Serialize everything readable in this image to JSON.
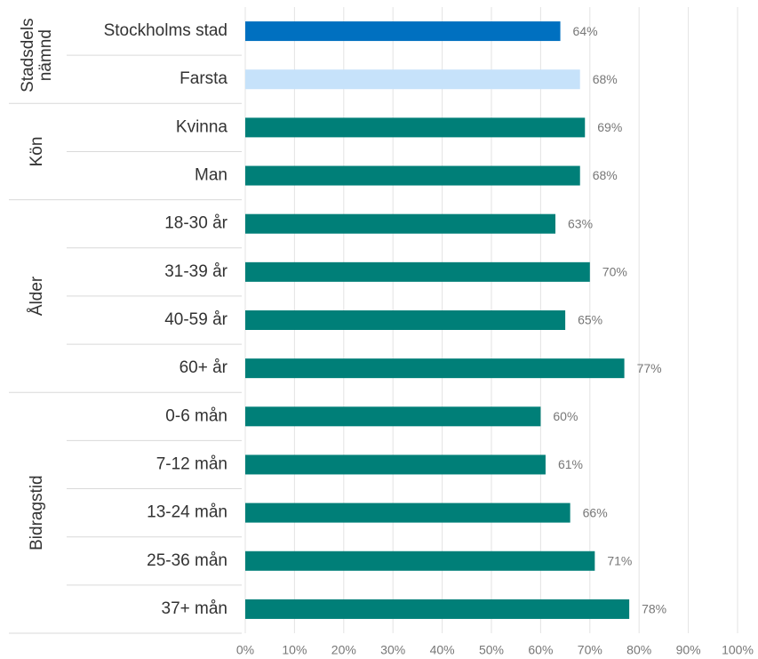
{
  "chart_data": {
    "type": "bar",
    "orientation": "horizontal",
    "categories": [
      "Stockholms stad",
      "Farsta",
      "Kvinna",
      "Man",
      "18-30 år",
      "31-39 år",
      "40-59 år",
      "60+ år",
      "0-6 mån",
      "7-12 mån",
      "13-24 mån",
      "25-36 mån",
      "37+ mån"
    ],
    "values": [
      64,
      68,
      69,
      68,
      63,
      70,
      65,
      77,
      60,
      61,
      66,
      71,
      78
    ],
    "value_labels": [
      "64%",
      "68%",
      "69%",
      "68%",
      "63%",
      "70%",
      "65%",
      "77%",
      "60%",
      "61%",
      "66%",
      "71%",
      "78%"
    ],
    "colors": [
      "#0070c0",
      "#c6e2fa",
      "#007f78",
      "#007f78",
      "#007f78",
      "#007f78",
      "#007f78",
      "#007f78",
      "#007f78",
      "#007f78",
      "#007f78",
      "#007f78",
      "#007f78"
    ],
    "groups": [
      {
        "label": [
          "Stadsdels",
          "nämnd"
        ],
        "span": 2
      },
      {
        "label": [
          "Kön"
        ],
        "span": 2
      },
      {
        "label": [
          "Ålder"
        ],
        "span": 4
      },
      {
        "label": [
          "Bidragstid"
        ],
        "span": 5
      }
    ],
    "xlim": [
      0,
      100
    ],
    "xticks": [
      {
        "value": 0,
        "label": "0%"
      },
      {
        "value": 10,
        "label": "10%"
      },
      {
        "value": 20,
        "label": "20%"
      },
      {
        "value": 30,
        "label": "30%"
      },
      {
        "value": 40,
        "label": "40%"
      },
      {
        "value": 50,
        "label": "50%"
      },
      {
        "value": 60,
        "label": "60%"
      },
      {
        "value": 70,
        "label": "70%"
      },
      {
        "value": 80,
        "label": "80%"
      },
      {
        "value": 90,
        "label": "90%"
      },
      {
        "value": 100,
        "label": "100%"
      }
    ],
    "grid": true
  }
}
